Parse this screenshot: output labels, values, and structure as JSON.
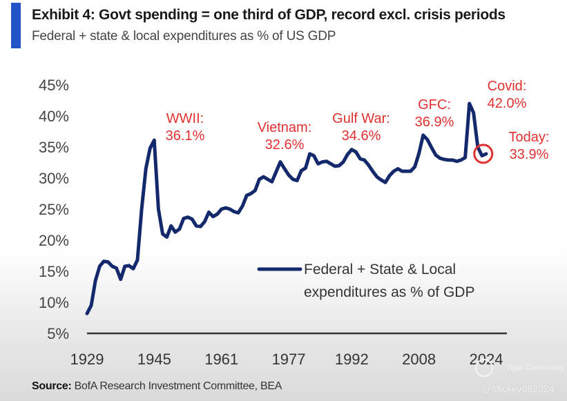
{
  "header": {
    "title": "Exhibit 4: Govt spending = one third of GDP, record excl. crisis periods",
    "subtitle": "Federal + state & local expenditures as % of US GDP",
    "accent_color": "#2453c8"
  },
  "footer": {
    "source_label": "Source:",
    "source_text": " BofA Research Investment Committee, BEA"
  },
  "watermark": {
    "community": "Tiger Community",
    "user": "@Mickey082024"
  },
  "chart_data": {
    "type": "line",
    "title": "Exhibit 4: Govt spending = one third of GDP, record excl. crisis periods",
    "subtitle": "Federal + state & local expenditures as % of US GDP",
    "xlabel": "",
    "ylabel": "",
    "xlim": [
      1929,
      2024
    ],
    "ylim": [
      5,
      45
    ],
    "x_ticks": [
      "1929",
      "1945",
      "1961",
      "1977",
      "1992",
      "2008",
      "2024"
    ],
    "y_ticks": [
      "5%",
      "10%",
      "15%",
      "20%",
      "25%",
      "30%",
      "35%",
      "40%",
      "45%"
    ],
    "grid": false,
    "legend": {
      "position": "center-right",
      "entries": [
        "Federal + State & Local",
        "expenditures as % of GDP"
      ]
    },
    "line_color": "#13296b",
    "annotation_color": "#e03030",
    "series": [
      {
        "name": "Federal + State & Local expenditures as % of GDP",
        "x": [
          1929,
          1930,
          1931,
          1932,
          1933,
          1934,
          1935,
          1936,
          1937,
          1938,
          1939,
          1940,
          1941,
          1942,
          1943,
          1944,
          1945,
          1946,
          1947,
          1948,
          1949,
          1950,
          1951,
          1952,
          1953,
          1954,
          1955,
          1956,
          1957,
          1958,
          1959,
          1960,
          1961,
          1962,
          1963,
          1964,
          1965,
          1966,
          1967,
          1968,
          1969,
          1970,
          1971,
          1972,
          1973,
          1974,
          1975,
          1976,
          1977,
          1978,
          1979,
          1980,
          1981,
          1982,
          1983,
          1984,
          1985,
          1986,
          1987,
          1988,
          1989,
          1990,
          1991,
          1992,
          1993,
          1994,
          1995,
          1996,
          1997,
          1998,
          1999,
          2000,
          2001,
          2002,
          2003,
          2004,
          2005,
          2006,
          2007,
          2008,
          2009,
          2010,
          2011,
          2012,
          2013,
          2014,
          2015,
          2016,
          2017,
          2018,
          2019,
          2020,
          2021,
          2022,
          2023,
          2024
        ],
        "values": [
          8.2,
          9.5,
          13.5,
          15.8,
          16.6,
          16.5,
          15.8,
          15.5,
          13.7,
          15.8,
          15.9,
          15.4,
          16.8,
          25.0,
          31.5,
          34.8,
          36.1,
          25.0,
          21.0,
          20.5,
          22.3,
          21.3,
          21.8,
          23.5,
          23.7,
          23.4,
          22.3,
          22.2,
          23.0,
          24.5,
          23.8,
          24.2,
          25.0,
          25.2,
          25.0,
          24.6,
          24.4,
          25.5,
          27.2,
          27.5,
          28.0,
          29.8,
          30.2,
          29.8,
          29.4,
          31.0,
          32.6,
          31.5,
          30.5,
          29.8,
          29.6,
          31.2,
          31.6,
          33.9,
          33.6,
          32.3,
          32.6,
          32.7,
          32.3,
          31.9,
          32.0,
          32.6,
          33.8,
          34.6,
          34.2,
          33.1,
          32.9,
          32.1,
          31.1,
          30.2,
          29.7,
          29.3,
          30.4,
          31.1,
          31.5,
          31.1,
          31.1,
          31.1,
          31.8,
          34.0,
          36.9,
          36.2,
          34.9,
          33.7,
          33.2,
          33.0,
          32.9,
          32.9,
          32.7,
          32.9,
          33.3,
          42.0,
          40.5,
          35.0,
          33.6,
          33.9
        ]
      }
    ],
    "annotations": [
      {
        "label": "WWII:",
        "value": "36.1%",
        "year": 1945,
        "y": 36.1
      },
      {
        "label": "Vietnam:",
        "value": "32.6%",
        "year": 1975,
        "y": 32.6
      },
      {
        "label": "Gulf War:",
        "value": "34.6%",
        "year": 1992,
        "y": 34.6
      },
      {
        "label": "GFC:",
        "value": "36.9%",
        "year": 2009,
        "y": 36.9
      },
      {
        "label": "Covid:",
        "value": "42.0%",
        "year": 2020,
        "y": 42.0
      },
      {
        "label": "Today:",
        "value": "33.9%",
        "year": 2024,
        "y": 33.9
      }
    ]
  }
}
